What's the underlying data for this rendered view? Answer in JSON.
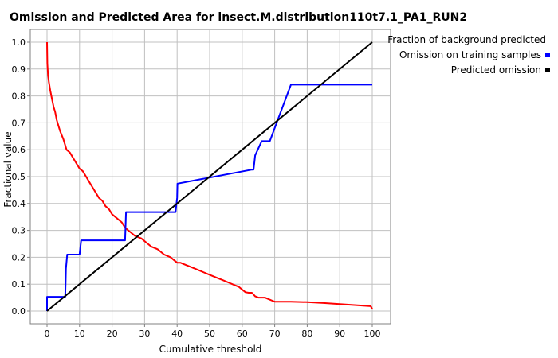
{
  "chart_data": {
    "type": "line",
    "title": "Omission and Predicted Area for insect.M.distribution110t7.1_PA1_RUN2",
    "xlabel": "Cumulative threshold",
    "ylabel": "Fractional value",
    "xlim": [
      0,
      100
    ],
    "ylim": [
      0,
      1
    ],
    "xticks": [
      "0",
      "10",
      "20",
      "30",
      "40",
      "50",
      "60",
      "70",
      "80",
      "90",
      "100"
    ],
    "yticks": [
      "0.0",
      "0.1",
      "0.2",
      "0.3",
      "0.4",
      "0.5",
      "0.6",
      "0.7",
      "0.8",
      "0.9",
      "1.0"
    ],
    "grid": true,
    "legend_position": "top-right",
    "series": [
      {
        "name": "Fraction of background predicted",
        "color": "#ff0000",
        "x": [
          0,
          0.1,
          0.3,
          0.6,
          1,
          1.5,
          2,
          2.5,
          3,
          4,
          5,
          6,
          7,
          8,
          9,
          10,
          11,
          12,
          13,
          14,
          15,
          16,
          17,
          18,
          19,
          20,
          21,
          22,
          23,
          24,
          25,
          26,
          27,
          28,
          29,
          30,
          31,
          32,
          33,
          34,
          35,
          36,
          37,
          38,
          39,
          40,
          41,
          42,
          44,
          46,
          48,
          50,
          52,
          54,
          56,
          58,
          59,
          60,
          61,
          62,
          63,
          64,
          65,
          66,
          67,
          68,
          69,
          70,
          75,
          80,
          85,
          90,
          95,
          99.5,
          100
        ],
        "y": [
          1.0,
          0.92,
          0.88,
          0.85,
          0.82,
          0.79,
          0.76,
          0.74,
          0.71,
          0.67,
          0.64,
          0.6,
          0.59,
          0.57,
          0.55,
          0.53,
          0.52,
          0.5,
          0.48,
          0.46,
          0.44,
          0.42,
          0.41,
          0.39,
          0.38,
          0.36,
          0.35,
          0.34,
          0.33,
          0.31,
          0.3,
          0.29,
          0.28,
          0.275,
          0.27,
          0.26,
          0.25,
          0.24,
          0.235,
          0.23,
          0.22,
          0.21,
          0.205,
          0.2,
          0.19,
          0.18,
          0.18,
          0.175,
          0.165,
          0.155,
          0.145,
          0.135,
          0.125,
          0.115,
          0.105,
          0.095,
          0.09,
          0.08,
          0.07,
          0.068,
          0.068,
          0.055,
          0.05,
          0.05,
          0.05,
          0.045,
          0.04,
          0.035,
          0.035,
          0.033,
          0.03,
          0.026,
          0.022,
          0.018,
          0.008
        ]
      },
      {
        "name": "Omission on training samples",
        "color": "#0000ff",
        "x": [
          0,
          0.01,
          5.6,
          5.7,
          5.8,
          6.2,
          6.4,
          10,
          10.5,
          24,
          24.3,
          39.5,
          40,
          40.1,
          63,
          63.5,
          64,
          66,
          67,
          68.5,
          75,
          100
        ],
        "y": [
          0,
          0.053,
          0.053,
          0.105,
          0.158,
          0.21,
          0.21,
          0.21,
          0.263,
          0.263,
          0.368,
          0.368,
          0.421,
          0.474,
          0.526,
          0.526,
          0.579,
          0.632,
          0.632,
          0.632,
          0.842,
          0.842
        ]
      },
      {
        "name": "Predicted omission",
        "color": "#000000",
        "x": [
          0,
          100
        ],
        "y": [
          0,
          1
        ]
      }
    ]
  }
}
